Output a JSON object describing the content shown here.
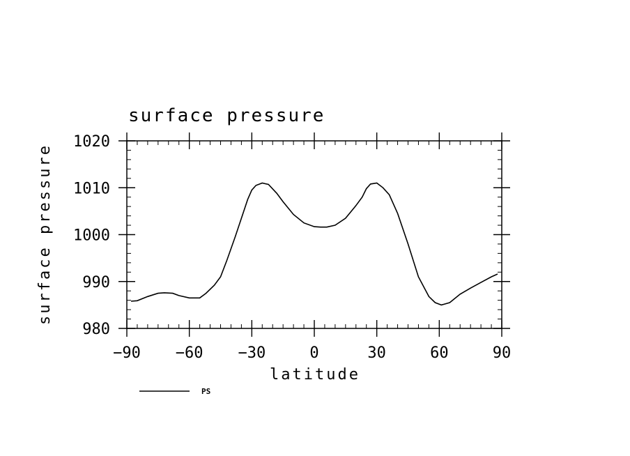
{
  "chart_data": {
    "type": "line",
    "title": "surface pressure",
    "xlabel": "latitude",
    "ylabel": "surface pressure",
    "xlim": [
      -90,
      90
    ],
    "ylim": [
      980,
      1020
    ],
    "x_ticks": [
      "−90",
      "−60",
      "−30",
      "0",
      "30",
      "60",
      "90"
    ],
    "y_ticks": [
      "980",
      "990",
      "1000",
      "1010",
      "1020"
    ],
    "grid": false,
    "legend_position": "bottom-left",
    "series": [
      {
        "name": "PS",
        "color": "#000000",
        "x": [
          -88,
          -85,
          -80,
          -75,
          -72,
          -68,
          -65,
          -60,
          -55,
          -52,
          -48,
          -45,
          -42,
          -38,
          -35,
          -32,
          -30,
          -28,
          -25,
          -22,
          -18,
          -15,
          -10,
          -5,
          0,
          3,
          6,
          10,
          15,
          20,
          23,
          25,
          27,
          30,
          33,
          36,
          40,
          45,
          50,
          55,
          58,
          61,
          65,
          70,
          75,
          80,
          85,
          88
        ],
        "y": [
          985.8,
          985.9,
          986.8,
          987.5,
          987.6,
          987.5,
          987.0,
          986.5,
          986.5,
          987.5,
          989.2,
          991.0,
          994.5,
          999.5,
          1003.5,
          1007.5,
          1009.5,
          1010.5,
          1011.0,
          1010.7,
          1008.8,
          1007.0,
          1004.3,
          1002.5,
          1001.7,
          1001.6,
          1001.6,
          1002.0,
          1003.5,
          1006.2,
          1008.0,
          1009.8,
          1010.8,
          1011.0,
          1010.0,
          1008.5,
          1004.5,
          998.0,
          991.0,
          986.8,
          985.5,
          985.0,
          985.5,
          987.3,
          988.6,
          989.8,
          991.0,
          991.6
        ]
      }
    ]
  }
}
